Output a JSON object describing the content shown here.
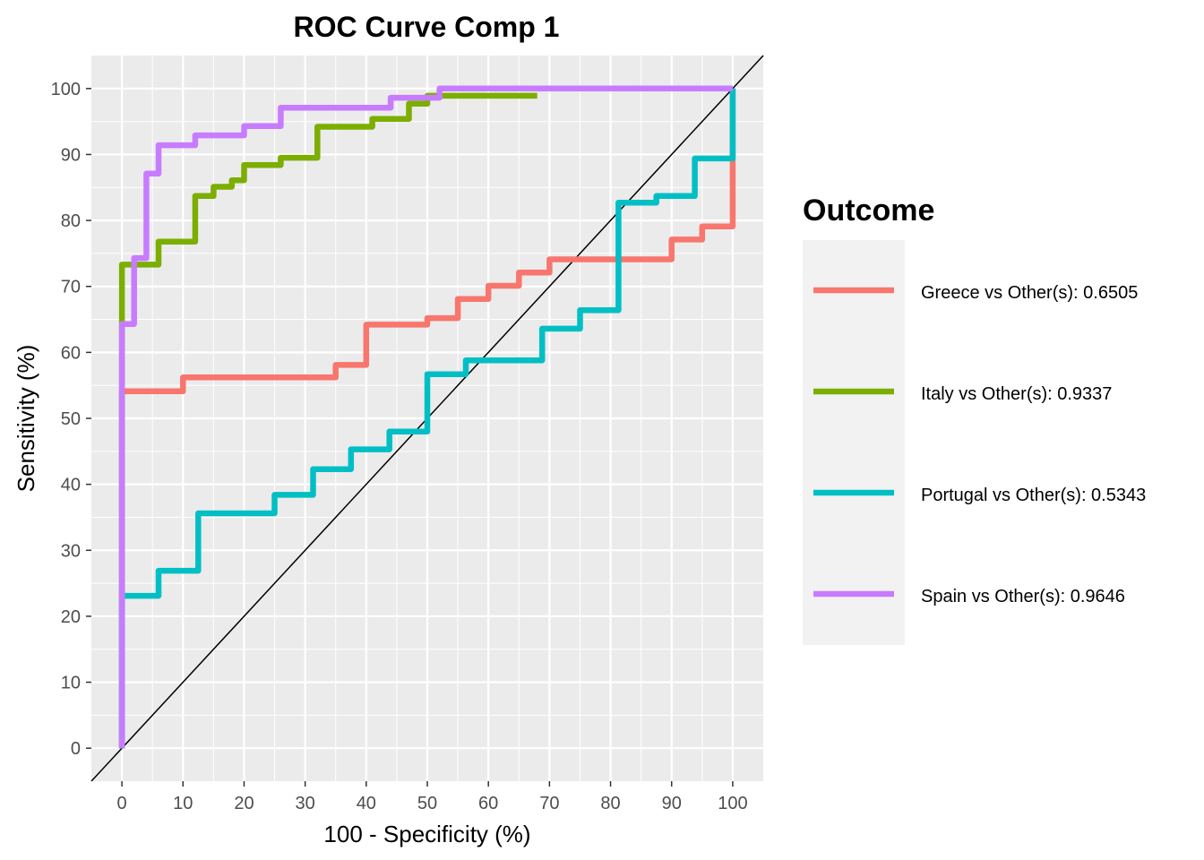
{
  "chart_data": {
    "type": "line",
    "title": "ROC Curve Comp 1",
    "xlabel": "100 - Specificity (%)",
    "ylabel": "Sensitivity (%)",
    "xlim": [
      -5,
      105
    ],
    "ylim": [
      -5,
      105
    ],
    "x_ticks": [
      0,
      10,
      20,
      30,
      40,
      50,
      60,
      70,
      80,
      90,
      100
    ],
    "y_ticks": [
      0,
      10,
      20,
      30,
      40,
      50,
      60,
      70,
      80,
      90,
      100
    ],
    "grid": true,
    "legend_title": "Outcome",
    "legend_position": "right",
    "reference_line": {
      "from": [
        -5,
        -5
      ],
      "to": [
        105,
        105
      ],
      "color": "#000000"
    },
    "series": [
      {
        "name": "Greece vs Other(s): 0.6505",
        "color": "#F8766D",
        "points": [
          [
            0,
            0
          ],
          [
            0,
            54.1
          ],
          [
            10,
            54.1
          ],
          [
            10,
            56.2
          ],
          [
            35,
            56.2
          ],
          [
            35,
            58.1
          ],
          [
            40,
            58.1
          ],
          [
            40,
            64.2
          ],
          [
            50,
            64.2
          ],
          [
            50,
            65.2
          ],
          [
            55,
            65.2
          ],
          [
            55,
            68.1
          ],
          [
            60,
            68.1
          ],
          [
            60,
            70.1
          ],
          [
            65,
            70.1
          ],
          [
            65,
            72.1
          ],
          [
            70,
            72.1
          ],
          [
            70,
            74.1
          ],
          [
            90,
            74.1
          ],
          [
            90,
            77.1
          ],
          [
            95,
            77.1
          ],
          [
            95,
            79.1
          ],
          [
            100,
            79.1
          ],
          [
            100,
            100
          ]
        ]
      },
      {
        "name": "Italy vs Other(s): 0.9337",
        "color": "#7CAE00",
        "points": [
          [
            0,
            0
          ],
          [
            0,
            73.3
          ],
          [
            6,
            73.3
          ],
          [
            6,
            76.8
          ],
          [
            12,
            76.8
          ],
          [
            12,
            83.7
          ],
          [
            15,
            83.7
          ],
          [
            15,
            85.1
          ],
          [
            18,
            85.1
          ],
          [
            18,
            86.1
          ],
          [
            20,
            86.1
          ],
          [
            20,
            88.4
          ],
          [
            26,
            88.4
          ],
          [
            26,
            89.5
          ],
          [
            32,
            89.5
          ],
          [
            32,
            94.2
          ],
          [
            41,
            94.2
          ],
          [
            41,
            95.4
          ],
          [
            47,
            95.4
          ],
          [
            47,
            97.7
          ],
          [
            50,
            97.7
          ],
          [
            50,
            98.9
          ],
          [
            68,
            98.9
          ]
        ]
      },
      {
        "name": "Portugal vs Other(s): 0.5343",
        "color": "#00BFC4",
        "points": [
          [
            0,
            0
          ],
          [
            0,
            23.1
          ],
          [
            6,
            23.1
          ],
          [
            6,
            26.9
          ],
          [
            12.5,
            26.9
          ],
          [
            12.5,
            35.6
          ],
          [
            25,
            35.6
          ],
          [
            25,
            38.4
          ],
          [
            31.3,
            38.4
          ],
          [
            31.3,
            42.3
          ],
          [
            37.5,
            42.3
          ],
          [
            37.5,
            45.3
          ],
          [
            43.8,
            45.3
          ],
          [
            43.8,
            48
          ],
          [
            50,
            48
          ],
          [
            50,
            56.7
          ],
          [
            56.3,
            56.7
          ],
          [
            56.3,
            58.8
          ],
          [
            68.8,
            58.8
          ],
          [
            68.8,
            63.6
          ],
          [
            75,
            63.6
          ],
          [
            75,
            66.4
          ],
          [
            81.3,
            66.4
          ],
          [
            81.3,
            82.7
          ],
          [
            87.5,
            82.7
          ],
          [
            87.5,
            83.7
          ],
          [
            93.8,
            83.7
          ],
          [
            93.8,
            89.4
          ],
          [
            100,
            89.4
          ],
          [
            100,
            100
          ]
        ]
      },
      {
        "name": "Spain vs Other(s): 0.9646",
        "color": "#C77CFF",
        "points": [
          [
            0,
            0
          ],
          [
            0,
            64.3
          ],
          [
            2,
            64.3
          ],
          [
            2,
            74.3
          ],
          [
            4,
            74.3
          ],
          [
            4,
            87.1
          ],
          [
            6,
            87.1
          ],
          [
            6,
            91.4
          ],
          [
            12,
            91.4
          ],
          [
            12,
            92.9
          ],
          [
            20,
            92.9
          ],
          [
            20,
            94.3
          ],
          [
            26,
            94.3
          ],
          [
            26,
            97.1
          ],
          [
            44,
            97.1
          ],
          [
            44,
            98.6
          ],
          [
            52,
            98.6
          ],
          [
            52,
            100
          ],
          [
            100,
            100
          ]
        ]
      }
    ]
  }
}
